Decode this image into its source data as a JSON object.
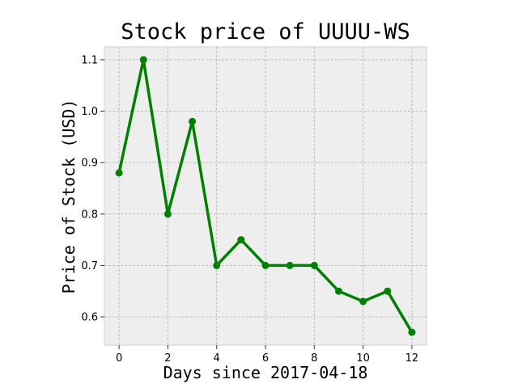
{
  "chart_data": {
    "type": "line",
    "title": "Stock price of UUUU-WS",
    "xlabel": "Days since 2017-04-18",
    "ylabel": "Price of Stock (USD)",
    "xlim": [
      -0.6,
      12.6
    ],
    "ylim": [
      0.545,
      1.125
    ],
    "xticks": [
      0,
      2,
      4,
      6,
      8,
      10,
      12
    ],
    "yticks": [
      0.6,
      0.7,
      0.8,
      0.9,
      1.0,
      1.1
    ],
    "ytick_labels": [
      "0.6",
      "0.7",
      "0.8",
      "0.9",
      "1.0",
      "1.1"
    ],
    "grid": true,
    "series": [
      {
        "color": "#008000",
        "x": [
          0,
          1,
          2,
          3,
          4,
          5,
          6,
          7,
          8,
          9,
          10,
          11,
          12
        ],
        "values": [
          0.88,
          1.1,
          0.8,
          0.98,
          0.7,
          0.75,
          0.7,
          0.7,
          0.7,
          0.65,
          0.63,
          0.65,
          0.57
        ]
      }
    ],
    "background_color": "#eeeeee"
  }
}
